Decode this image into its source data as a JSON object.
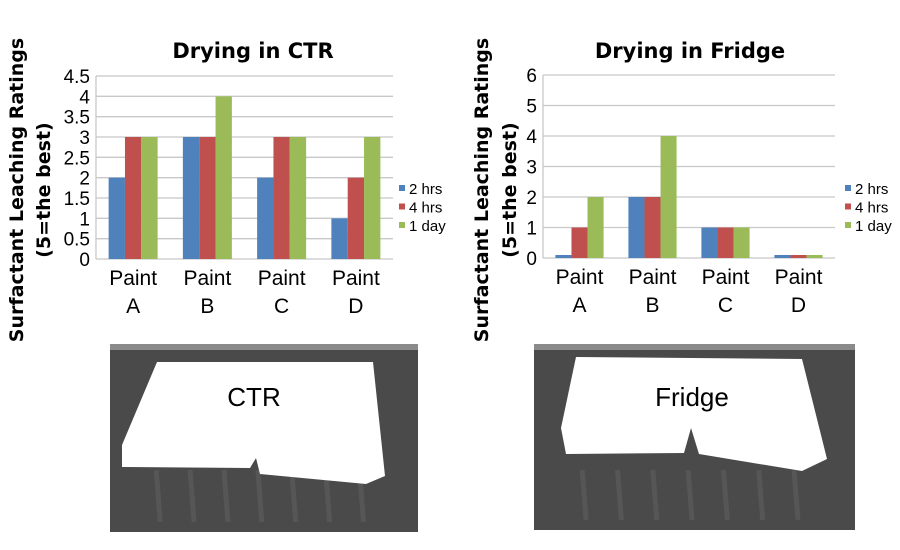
{
  "colors": {
    "2 hrs": "#4f81bd",
    "4 hrs": "#c0504d",
    "1 day": "#9bbb59",
    "grid": "#c8c8c8",
    "photo_bg": "#4a4a4a"
  },
  "chart_data": [
    {
      "type": "bar",
      "title": "Drying in CTR",
      "ylabel": [
        "Surfactant Leaching Ratings",
        "(5=the best)"
      ],
      "xlabel": "",
      "categories": [
        [
          "Paint",
          "A"
        ],
        [
          "Paint",
          "B"
        ],
        [
          "Paint",
          "C"
        ],
        [
          "Paint",
          "D"
        ]
      ],
      "series": [
        {
          "name": "2 hrs",
          "values": [
            2,
            3,
            2,
            1
          ]
        },
        {
          "name": "4 hrs",
          "values": [
            3,
            3,
            3,
            2
          ]
        },
        {
          "name": "1 day",
          "values": [
            3,
            4,
            3,
            3
          ]
        }
      ],
      "yticks": [
        "0",
        "0.5",
        "1",
        "1.5",
        "2",
        "2.5",
        "3",
        "3.5",
        "4",
        "4.5"
      ],
      "ylim": [
        0,
        4.5
      ],
      "grid": true,
      "legend": "right"
    },
    {
      "type": "bar",
      "title": "Drying in Fridge",
      "ylabel": [
        "Surfactant Leaching Ratings",
        "(5=the best)"
      ],
      "xlabel": "",
      "categories": [
        [
          "Paint",
          "A"
        ],
        [
          "Paint",
          "B"
        ],
        [
          "Paint",
          "C"
        ],
        [
          "Paint",
          "D"
        ]
      ],
      "series": [
        {
          "name": "2 hrs",
          "values": [
            0,
            2,
            1,
            0
          ]
        },
        {
          "name": "4 hrs",
          "values": [
            1,
            2,
            1,
            0
          ]
        },
        {
          "name": "1 day",
          "values": [
            2,
            4,
            1,
            0
          ]
        }
      ],
      "yticks": [
        "0",
        "1",
        "2",
        "3",
        "4",
        "5",
        "6"
      ],
      "ylim": [
        0,
        6
      ],
      "grid": true,
      "legend": "right"
    }
  ],
  "photos": [
    {
      "label": "CTR"
    },
    {
      "label": "Fridge"
    }
  ]
}
